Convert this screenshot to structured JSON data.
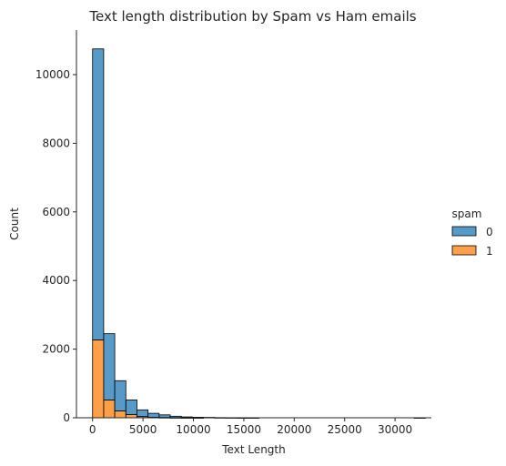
{
  "chart_data": {
    "type": "bar",
    "stacked": true,
    "title": "Text length distribution by Spam vs Ham emails",
    "xlabel": "Text Length",
    "ylabel": "Count",
    "xlim": [
      -1600,
      33600
    ],
    "ylim": [
      0,
      11300
    ],
    "bin_start": 0,
    "bin_width": 1100,
    "xticks": [
      0,
      5000,
      10000,
      15000,
      20000,
      25000,
      30000
    ],
    "yticks": [
      0,
      2000,
      4000,
      6000,
      8000,
      10000
    ],
    "legend": {
      "title": "spam",
      "placement": "center-right",
      "entries": [
        {
          "label": "0",
          "color": "#1f77b4"
        },
        {
          "label": "1",
          "color": "#ff7f0e"
        }
      ]
    },
    "series": [
      {
        "name": "1",
        "color": "#ff7f0e",
        "values": [
          2270,
          520,
          200,
          90,
          35,
          15,
          8,
          4,
          2,
          1,
          0,
          0,
          0,
          0,
          0,
          0,
          0,
          0,
          0,
          0,
          0,
          0,
          0,
          0,
          0,
          0,
          0,
          0,
          0,
          0
        ]
      },
      {
        "name": "0",
        "color": "#1f77b4",
        "values": [
          8480,
          1930,
          880,
          430,
          195,
          115,
          77,
          41,
          23,
          14,
          12,
          5,
          3,
          1,
          1,
          0,
          0,
          0,
          0,
          0,
          0,
          0,
          0,
          0,
          0,
          0,
          0,
          0,
          0,
          1
        ]
      }
    ]
  }
}
